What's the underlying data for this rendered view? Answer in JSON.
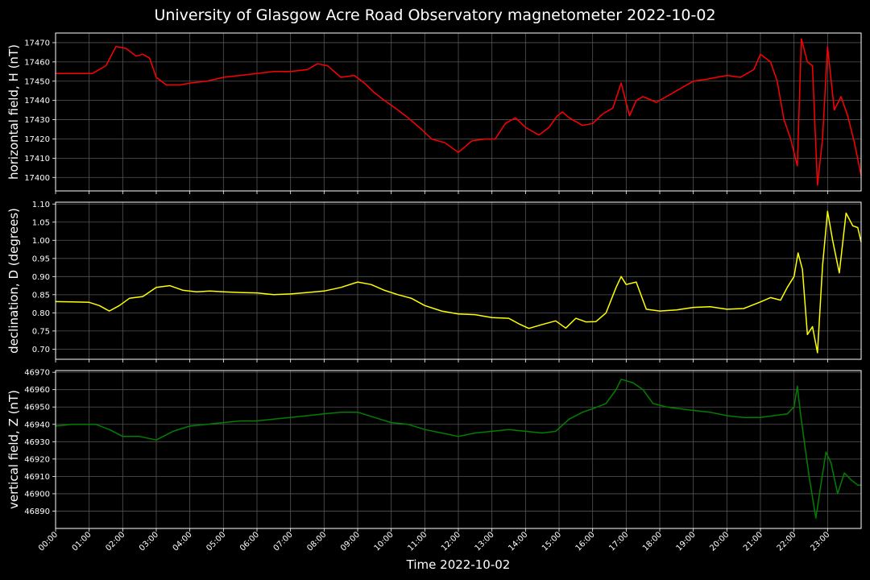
{
  "title": "University of Glasgow Acre Road Observatory magnetometer 2022-10-02",
  "xlabel": "Time 2022-10-02",
  "xtick_labels": [
    "00:00",
    "01:00",
    "02:00",
    "03:00",
    "04:00",
    "05:00",
    "06:00",
    "07:00",
    "08:00",
    "09:00",
    "10:00",
    "11:00",
    "12:00",
    "13:00",
    "14:00",
    "15:00",
    "16:00",
    "17:00",
    "18:00",
    "19:00",
    "20:00",
    "21:00",
    "22:00",
    "23:00"
  ],
  "chart_data": [
    {
      "type": "line",
      "ylabel": "horizontal field, H (nT)",
      "color": "#ff0000",
      "xlim": [
        0,
        24
      ],
      "ylim": [
        17393,
        17475
      ],
      "yticks": [
        17400,
        17410,
        17420,
        17430,
        17440,
        17450,
        17460,
        17470
      ],
      "grid": true,
      "series": [
        {
          "x": [
            0,
            0.5,
            1.1,
            1.5,
            1.8,
            2.1,
            2.4,
            2.6,
            2.8,
            3.0,
            3.3,
            3.7,
            4.0,
            4.5,
            5.0,
            5.5,
            6.0,
            6.5,
            7.0,
            7.5,
            7.8,
            8.1,
            8.5,
            8.9,
            9.2,
            9.5,
            9.8,
            10.2,
            10.5,
            10.9,
            11.2,
            11.6,
            12.0,
            12.4,
            12.8,
            13.1,
            13.4,
            13.7,
            14.0,
            14.4,
            14.7,
            14.95,
            15.1,
            15.3,
            15.7,
            16.0,
            16.3,
            16.6,
            16.85,
            17.1,
            17.3,
            17.5,
            17.9,
            18.3,
            18.7,
            19.0,
            19.4,
            19.7,
            20.0,
            20.4,
            20.8,
            21.0,
            21.3,
            21.5,
            21.7,
            21.9,
            22.1,
            22.22,
            22.4,
            22.55,
            22.7,
            22.85,
            23.0,
            23.2,
            23.4,
            23.6,
            23.8,
            24.0
          ],
          "y": [
            17454,
            17454,
            17454,
            17458,
            17468,
            17467,
            17463,
            17464,
            17462,
            17452,
            17448,
            17448,
            17449,
            17450,
            17452,
            17453,
            17454,
            17455,
            17455,
            17456,
            17459,
            17458,
            17452,
            17453,
            17449,
            17444,
            17440,
            17435,
            17431,
            17425,
            17420,
            17418,
            17413,
            17419,
            17420,
            17420,
            17428,
            17431,
            17426,
            17422,
            17426,
            17432,
            17434,
            17431,
            17427,
            17428,
            17433,
            17436,
            17449,
            17432,
            17440,
            17442,
            17439,
            17443,
            17447,
            17450,
            17451,
            17452,
            17453,
            17452,
            17456,
            17464,
            17460,
            17450,
            17430,
            17420,
            17406,
            17472,
            17460,
            17458,
            17396,
            17420,
            17468,
            17435,
            17442,
            17432,
            17418,
            17401
          ]
        }
      ]
    },
    {
      "type": "line",
      "ylabel": "declination, D (degrees)",
      "color": "#ffff00",
      "xlim": [
        0,
        24
      ],
      "ylim": [
        0.672,
        1.105
      ],
      "yticks": [
        0.7,
        0.75,
        0.8,
        0.85,
        0.9,
        0.95,
        1.0,
        1.05,
        1.1
      ],
      "yticklabels": [
        "0.70",
        "0.75",
        "0.80",
        "0.85",
        "0.90",
        "0.95",
        "1.00",
        "1.05",
        "1.10"
      ],
      "grid": true,
      "series": [
        {
          "x": [
            0,
            0.5,
            1.0,
            1.3,
            1.6,
            1.9,
            2.2,
            2.6,
            3.0,
            3.4,
            3.8,
            4.2,
            4.6,
            5.0,
            5.5,
            6.0,
            6.5,
            7.0,
            7.5,
            8.0,
            8.5,
            9.0,
            9.4,
            9.8,
            10.2,
            10.6,
            11.0,
            11.5,
            12.0,
            12.5,
            13.0,
            13.5,
            13.8,
            14.1,
            14.5,
            14.9,
            15.2,
            15.5,
            15.8,
            16.1,
            16.4,
            16.7,
            16.85,
            17.0,
            17.3,
            17.6,
            18.0,
            18.5,
            19.0,
            19.5,
            20.0,
            20.5,
            21.0,
            21.3,
            21.6,
            21.8,
            22.0,
            22.12,
            22.25,
            22.4,
            22.55,
            22.7,
            22.85,
            23.0,
            23.15,
            23.35,
            23.55,
            23.75,
            23.9,
            24.0
          ],
          "y": [
            0.831,
            0.83,
            0.829,
            0.82,
            0.805,
            0.82,
            0.84,
            0.845,
            0.87,
            0.875,
            0.862,
            0.858,
            0.86,
            0.858,
            0.856,
            0.855,
            0.85,
            0.852,
            0.856,
            0.86,
            0.87,
            0.885,
            0.878,
            0.862,
            0.85,
            0.84,
            0.82,
            0.805,
            0.797,
            0.795,
            0.787,
            0.785,
            0.77,
            0.757,
            0.768,
            0.778,
            0.758,
            0.785,
            0.775,
            0.776,
            0.8,
            0.87,
            0.9,
            0.878,
            0.885,
            0.81,
            0.805,
            0.808,
            0.815,
            0.817,
            0.81,
            0.812,
            0.83,
            0.842,
            0.835,
            0.87,
            0.9,
            0.965,
            0.92,
            0.74,
            0.762,
            0.69,
            0.93,
            1.08,
            1.0,
            0.91,
            1.075,
            1.04,
            1.035,
            0.995
          ]
        }
      ]
    },
    {
      "type": "line",
      "ylabel": "vertical field, Z (nT)",
      "color": "#008000",
      "xlim": [
        0,
        24
      ],
      "ylim": [
        46880,
        46971
      ],
      "yticks": [
        46890,
        46900,
        46910,
        46920,
        46930,
        46940,
        46950,
        46960,
        46970
      ],
      "grid": true,
      "series": [
        {
          "x": [
            0,
            0.5,
            1.2,
            1.6,
            2.0,
            2.5,
            3.0,
            3.5,
            4.0,
            4.5,
            5.0,
            5.5,
            6.0,
            6.5,
            7.0,
            7.5,
            8.0,
            8.5,
            9.0,
            9.5,
            10.0,
            10.5,
            11.0,
            11.5,
            12.0,
            12.5,
            13.0,
            13.5,
            14.0,
            14.5,
            14.9,
            15.3,
            15.7,
            16.0,
            16.4,
            16.7,
            16.85,
            17.2,
            17.5,
            17.8,
            18.2,
            18.6,
            19.0,
            19.5,
            20.0,
            20.5,
            21.0,
            21.4,
            21.8,
            22.0,
            22.1,
            22.2,
            22.45,
            22.65,
            22.8,
            22.95,
            23.1,
            23.3,
            23.5,
            23.7,
            23.9,
            24.0
          ],
          "y": [
            46939,
            46940,
            46940,
            46937,
            46933,
            46933,
            46931,
            46936,
            46939,
            46940,
            46941,
            46942,
            46942,
            46943,
            46944,
            46945,
            46946,
            46947,
            46947,
            46944,
            46941,
            46940,
            46937,
            46935,
            46933,
            46935,
            46936,
            46937,
            46936,
            46935,
            46936,
            46943,
            46947,
            46949,
            46952,
            46960,
            46966,
            46964,
            46960,
            46952,
            46950,
            46949,
            46948,
            46947,
            46945,
            46944,
            46944,
            46945,
            46946,
            46950,
            46962,
            46945,
            46910,
            46886,
            46905,
            46924,
            46918,
            46900,
            46912,
            46908,
            46905,
            46905
          ]
        }
      ]
    }
  ]
}
